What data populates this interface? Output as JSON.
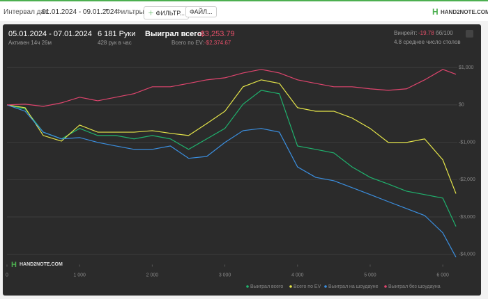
{
  "toolbar": {
    "interval_label": "Интервал дат:",
    "interval": "01.01.2024 - 09.01.2024",
    "filters_label": "Фильтры:",
    "filter_button": "ФИЛЬТР...",
    "file_button": "ФАЙЛ...",
    "logo": "HAND2NOTE.COM"
  },
  "stats": {
    "period": "05.01.2024 - 07.01.2024",
    "active": "Активен 14ч 26м",
    "hands": "6 181 Руки",
    "hands_per_hour": "428 рук в час",
    "won_label": "Выиграл всего:",
    "won": "-$3,253.79",
    "ev_label": "Всего по EV:",
    "ev": "-$2,374.67",
    "winrate_label": "Винрейт:",
    "winrate": "-19.78",
    "winrate_unit": "бб/100",
    "tables": "4.8 среднее число столов"
  },
  "watermark": "HAND2NOTE.COM",
  "chart_data": {
    "type": "line",
    "grid": true,
    "x": [
      0,
      250,
      500,
      750,
      1000,
      1250,
      1500,
      1750,
      2000,
      2250,
      2500,
      2750,
      3000,
      3250,
      3500,
      3750,
      4000,
      4250,
      4500,
      4750,
      5000,
      5250,
      5500,
      5750,
      6000,
      6181
    ],
    "xlim": [
      0,
      6200
    ],
    "xticks": [
      0,
      {
        "value": 1000,
        "label": "1 000"
      },
      {
        "value": 2000,
        "label": "2 000"
      },
      {
        "value": 3000,
        "label": "3 000"
      },
      {
        "value": 4000,
        "label": "4 000"
      },
      {
        "value": 5000,
        "label": "5 000"
      },
      {
        "value": 6000,
        "label": "6 000"
      }
    ],
    "ylim": [
      -4200,
      1300
    ],
    "yticks": [
      {
        "value": 1000,
        "label": "$1,000"
      },
      {
        "value": 0,
        "label": "$0"
      },
      {
        "value": -1000,
        "label": "-$1,000"
      },
      {
        "value": -2000,
        "label": "-$2,000"
      },
      {
        "value": -3000,
        "label": "-$3,000"
      },
      {
        "value": -4000,
        "label": "-$4,000"
      }
    ],
    "series": [
      {
        "name": "Выиграл всего",
        "color": "#1fb36e",
        "values": [
          0,
          -110,
          -730,
          -910,
          -630,
          -820,
          -820,
          -910,
          -820,
          -910,
          -1190,
          -910,
          -630,
          20,
          390,
          300,
          -1100,
          -1190,
          -1285,
          -1660,
          -1940,
          -2120,
          -2310,
          -2400,
          -2495,
          -3254
        ]
      },
      {
        "name": "Всего по EV",
        "color": "#e6e64a",
        "values": [
          0,
          -75,
          -820,
          -970,
          -540,
          -730,
          -730,
          -730,
          -690,
          -760,
          -820,
          -500,
          -170,
          485,
          670,
          575,
          -75,
          -170,
          -170,
          -350,
          -630,
          -1005,
          -1005,
          -910,
          -1470,
          -2375
        ]
      },
      {
        "name": "Выиграл на шоудауне",
        "color": "#3b8fe0",
        "values": [
          0,
          -170,
          -730,
          -910,
          -875,
          -1005,
          -1100,
          -1190,
          -1190,
          -1100,
          -1430,
          -1380,
          -1005,
          -690,
          -630,
          -730,
          -1660,
          -1940,
          -2030,
          -2215,
          -2400,
          -2590,
          -2775,
          -2960,
          -3425,
          -4075
        ]
      },
      {
        "name": "Выиграл без шоудауна",
        "color": "#e0456e",
        "values": [
          0,
          20,
          -40,
          55,
          205,
          110,
          205,
          300,
          485,
          485,
          575,
          670,
          725,
          855,
          950,
          855,
          670,
          575,
          485,
          485,
          430,
          390,
          430,
          670,
          950,
          820
        ]
      }
    ]
  }
}
